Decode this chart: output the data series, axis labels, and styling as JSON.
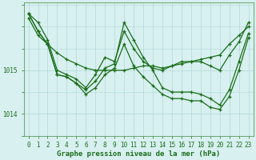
{
  "background_color": "#d8f0f0",
  "grid_color": "#b0d8d8",
  "line_color": "#1a6e1a",
  "xlabel": "Graphe pression niveau de la mer (hPa)",
  "xlabel_fontsize": 6.5,
  "tick_fontsize": 5.5,
  "yticks": [
    1014,
    1015
  ],
  "ylim": [
    1013.55,
    1016.55
  ],
  "xlim": [
    -0.5,
    23.5
  ],
  "series": [
    [
      1016.2,
      1015.8,
      1015.6,
      1015.4,
      1015.25,
      1015.15,
      1015.05,
      1015.0,
      1015.0,
      1015.0,
      1015.0,
      1015.05,
      1015.1,
      1015.1,
      1015.05,
      1015.1,
      1015.15,
      1015.2,
      1015.25,
      1015.3,
      1015.35,
      1015.6,
      1015.8,
      1016.0
    ],
    [
      1016.3,
      1016.1,
      1015.7,
      1015.0,
      1014.9,
      1014.8,
      1014.6,
      1014.9,
      1015.3,
      1015.2,
      1015.9,
      1015.5,
      1015.2,
      1015.05,
      1015.0,
      1015.1,
      1015.2,
      1015.2,
      1015.2,
      1015.1,
      1015.0,
      1015.35,
      1015.65,
      1016.1
    ],
    [
      1016.3,
      1015.9,
      1015.6,
      1014.9,
      1014.85,
      1014.7,
      1014.55,
      1014.75,
      1015.05,
      1015.15,
      1016.1,
      1015.7,
      1015.3,
      1015.0,
      1014.6,
      1014.5,
      1014.5,
      1014.5,
      1014.45,
      1014.35,
      1014.2,
      1014.55,
      1015.2,
      1015.85
    ],
    [
      1016.3,
      1015.9,
      1015.6,
      1014.9,
      1014.85,
      1014.7,
      1014.45,
      1014.6,
      1014.9,
      1015.05,
      1015.6,
      1015.1,
      1014.85,
      1014.65,
      1014.45,
      1014.35,
      1014.35,
      1014.3,
      1014.3,
      1014.15,
      1014.1,
      1014.4,
      1015.0,
      1015.75
    ]
  ]
}
